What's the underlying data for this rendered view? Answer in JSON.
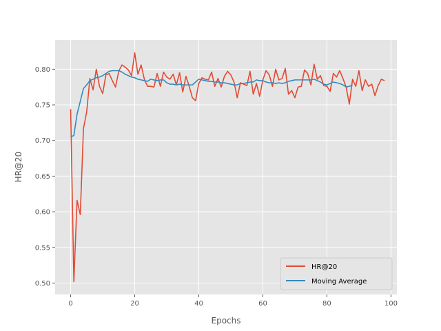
{
  "chart_data": {
    "type": "line",
    "title": "",
    "xlabel": "Epochs",
    "ylabel": "HR@20",
    "xlim": [
      -4.85,
      101.85
    ],
    "ylim": [
      0.484,
      0.841
    ],
    "x_ticks": [
      "0",
      "20",
      "40",
      "60",
      "80",
      "100"
    ],
    "x_tick_values": [
      0,
      20,
      40,
      60,
      80,
      100
    ],
    "y_ticks": [
      "0.50",
      "0.55",
      "0.60",
      "0.65",
      "0.70",
      "0.75",
      "0.80"
    ],
    "y_tick_values": [
      0.5,
      0.55,
      0.6,
      0.65,
      0.7,
      0.75,
      0.8
    ],
    "grid": true,
    "legend_position": "lower-right",
    "series": [
      {
        "name": "HR@20",
        "color": "#E24A33",
        "x_start": 0,
        "values": [
          0.744,
          0.502,
          0.616,
          0.596,
          0.717,
          0.74,
          0.787,
          0.771,
          0.8,
          0.776,
          0.766,
          0.792,
          0.794,
          0.784,
          0.775,
          0.797,
          0.806,
          0.803,
          0.799,
          0.791,
          0.823,
          0.793,
          0.806,
          0.786,
          0.776,
          0.776,
          0.775,
          0.794,
          0.776,
          0.796,
          0.789,
          0.786,
          0.793,
          0.778,
          0.795,
          0.768,
          0.79,
          0.776,
          0.76,
          0.756,
          0.78,
          0.788,
          0.786,
          0.785,
          0.796,
          0.776,
          0.787,
          0.775,
          0.79,
          0.797,
          0.792,
          0.782,
          0.76,
          0.781,
          0.779,
          0.777,
          0.797,
          0.765,
          0.78,
          0.762,
          0.785,
          0.798,
          0.792,
          0.776,
          0.8,
          0.785,
          0.787,
          0.801,
          0.765,
          0.77,
          0.76,
          0.775,
          0.776,
          0.799,
          0.794,
          0.778,
          0.807,
          0.786,
          0.791,
          0.777,
          0.776,
          0.769,
          0.794,
          0.789,
          0.798,
          0.787,
          0.775,
          0.751,
          0.786,
          0.776,
          0.798,
          0.77,
          0.785,
          0.776,
          0.779,
          0.763,
          0.777,
          0.786,
          0.784
        ]
      },
      {
        "name": "Moving Average",
        "color": "#348ABD",
        "x_start": 0,
        "values": [
          0.705,
          0.707,
          0.737,
          0.755,
          0.773,
          0.778,
          0.784,
          0.786,
          0.788,
          0.789,
          0.791,
          0.794,
          0.797,
          0.798,
          0.798,
          0.798,
          0.796,
          0.793,
          0.791,
          0.789,
          0.788,
          0.786,
          0.785,
          0.784,
          0.783,
          0.786,
          0.785,
          0.784,
          0.785,
          0.785,
          0.781,
          0.779,
          0.779,
          0.778,
          0.779,
          0.778,
          0.778,
          0.778,
          0.778,
          0.782,
          0.786,
          0.785,
          0.784,
          0.783,
          0.783,
          0.782,
          0.782,
          0.781,
          0.781,
          0.78,
          0.779,
          0.778,
          0.778,
          0.78,
          0.78,
          0.781,
          0.782,
          0.782,
          0.785,
          0.784,
          0.784,
          0.782,
          0.781,
          0.781,
          0.78,
          0.781,
          0.78,
          0.781,
          0.783,
          0.784,
          0.785,
          0.785,
          0.785,
          0.785,
          0.785,
          0.785,
          0.786,
          0.784,
          0.782,
          0.779,
          0.778,
          0.78,
          0.782,
          0.781,
          0.78,
          0.778,
          0.775,
          0.776,
          0.778
        ]
      }
    ]
  }
}
